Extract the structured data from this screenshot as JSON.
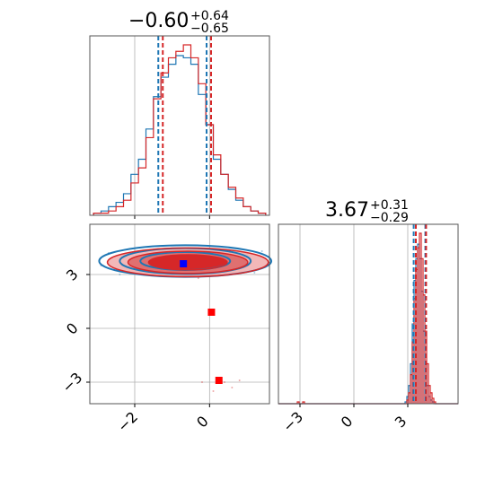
{
  "colors": {
    "series_a": "#1f77b4",
    "series_b": "#d62728",
    "grid": "#b0b0b0",
    "frame": "#555555",
    "text": "#000000",
    "marker_a": "#0000ff",
    "marker_b": "#ff0000"
  },
  "chart_data": {
    "type": "corner",
    "parameters": [
      {
        "title": {
          "median": "−0.60",
          "plus": "+0.64",
          "minus": "−0.65"
        },
        "range": [
          -3.2,
          1.6
        ],
        "ticks": [
          -2,
          0
        ],
        "tick_labels": [
          "−2",
          "0"
        ],
        "quantiles": {
          "series_a": [
            -1.37,
            -0.08
          ],
          "series_b": [
            -1.25,
            0.04
          ]
        },
        "histogram": {
          "bin_centers": [
            -3.0,
            -2.8,
            -2.6,
            -2.4,
            -2.2,
            -2.0,
            -1.8,
            -1.6,
            -1.4,
            -1.2,
            -1.0,
            -0.8,
            -0.6,
            -0.4,
            -0.2,
            0.0,
            0.2,
            0.4,
            0.6,
            0.8,
            1.0,
            1.2,
            1.4
          ],
          "series_a": [
            1,
            2,
            4,
            6,
            10,
            19,
            26,
            40,
            55,
            64,
            70,
            74,
            73,
            70,
            56,
            42,
            26,
            19,
            12,
            7,
            4,
            2,
            1
          ],
          "series_b": [
            1,
            1,
            2,
            4,
            7,
            15,
            22,
            36,
            54,
            66,
            73,
            76,
            79,
            73,
            61,
            42,
            28,
            19,
            13,
            8,
            4,
            2,
            1
          ]
        }
      },
      {
        "title": {
          "median": "3.67",
          "plus": "+0.31",
          "minus": "−0.29"
        },
        "range": [
          -4.2,
          5.8
        ],
        "ticks": [
          -3,
          0,
          3
        ],
        "tick_labels": [
          "−3",
          "0",
          "3"
        ],
        "quantiles": {
          "series_a": [
            3.33,
            3.98
          ],
          "series_b": [
            3.45,
            4.02
          ]
        },
        "histogram": {
          "bin_centers": [
            -3.1,
            -2.8,
            2.9,
            3.0,
            3.1,
            3.2,
            3.3,
            3.4,
            3.5,
            3.6,
            3.7,
            3.8,
            3.9,
            4.0,
            4.1,
            4.2,
            4.3,
            4.4,
            4.5
          ],
          "series_a": [
            0,
            0,
            1,
            4,
            10,
            22,
            44,
            68,
            80,
            88,
            80,
            62,
            40,
            22,
            10,
            4,
            2,
            1,
            0
          ],
          "series_b": [
            1,
            1,
            0,
            2,
            6,
            16,
            34,
            58,
            74,
            86,
            94,
            80,
            60,
            40,
            22,
            10,
            6,
            3,
            1
          ]
        }
      }
    ],
    "joint": {
      "x_range": [
        -3.2,
        1.6
      ],
      "y_range": [
        -4.2,
        5.8
      ],
      "contours": {
        "series_a": [
          {
            "cx": -0.65,
            "cy": 3.75,
            "rx": 1.2,
            "ry": 0.5
          },
          {
            "cx": -0.65,
            "cy": 3.75,
            "rx": 1.75,
            "ry": 0.72
          },
          {
            "cx": -0.65,
            "cy": 3.75,
            "rx": 2.3,
            "ry": 0.88
          }
        ],
        "series_b": [
          {
            "cx": -0.58,
            "cy": 3.68,
            "rx": 1.05,
            "ry": 0.42
          },
          {
            "cx": -0.58,
            "cy": 3.68,
            "rx": 1.6,
            "ry": 0.62
          },
          {
            "cx": -0.58,
            "cy": 3.68,
            "rx": 2.15,
            "ry": 0.8
          }
        ]
      },
      "scatter_points": {
        "series_a": [
          [
            -2.7,
            4.2
          ],
          [
            -2.9,
            3.5
          ],
          [
            1.2,
            3.1
          ],
          [
            1.4,
            4.3
          ],
          [
            -2.4,
            3.0
          ],
          [
            -0.5,
            2.9
          ]
        ],
        "series_b": [
          [
            0.2,
            -2.8
          ],
          [
            0.4,
            -3.0
          ],
          [
            0.6,
            -3.3
          ],
          [
            -0.2,
            -3.0
          ],
          [
            0.1,
            -3.5
          ],
          [
            0.8,
            -2.9
          ],
          [
            -0.3,
            2.8
          ]
        ]
      },
      "markers": [
        {
          "color_key": "marker_a",
          "x": -0.7,
          "y": 3.6
        },
        {
          "color_key": "marker_b",
          "x": 0.05,
          "y": 0.9
        },
        {
          "color_key": "marker_b",
          "x": 0.25,
          "y": -2.9
        }
      ]
    }
  }
}
